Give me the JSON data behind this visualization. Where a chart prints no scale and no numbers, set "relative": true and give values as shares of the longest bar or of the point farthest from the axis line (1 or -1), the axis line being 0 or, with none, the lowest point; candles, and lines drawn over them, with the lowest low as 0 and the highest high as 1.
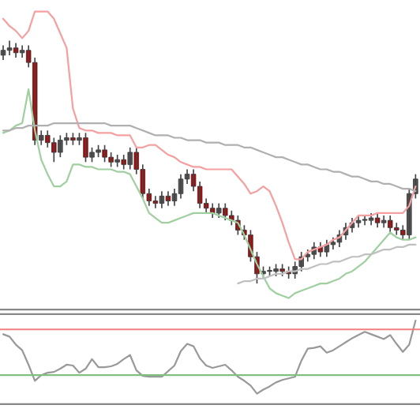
{
  "chart_data": [
    {
      "type": "candlestick",
      "relative": true,
      "tick_labels": false,
      "categories": [
        null,
        null,
        null,
        null,
        null,
        null,
        null,
        null,
        null,
        null,
        null,
        null,
        null,
        null,
        null,
        null,
        null,
        null,
        null,
        null,
        null,
        null,
        null,
        null,
        null,
        null,
        null,
        null,
        null,
        null,
        null,
        null,
        null,
        null,
        null,
        null,
        null,
        null,
        null,
        null,
        null,
        null,
        null,
        null,
        null,
        null,
        null,
        null,
        null,
        null,
        null,
        null,
        null,
        null,
        null,
        null,
        null,
        null,
        null,
        null,
        null,
        null,
        null,
        null,
        null,
        null
      ],
      "ohlc": [
        [
          0.94,
          0.98,
          0.92,
          0.96
        ],
        [
          0.96,
          1.0,
          0.94,
          0.97
        ],
        [
          0.97,
          0.99,
          0.93,
          0.95
        ],
        [
          0.95,
          0.98,
          0.93,
          0.96
        ],
        [
          0.96,
          0.98,
          0.89,
          0.91
        ],
        [
          0.91,
          0.93,
          0.57,
          0.59
        ],
        [
          0.59,
          0.63,
          0.57,
          0.61
        ],
        [
          0.61,
          0.63,
          0.56,
          0.58
        ],
        [
          0.58,
          0.6,
          0.5,
          0.54
        ],
        [
          0.54,
          0.61,
          0.52,
          0.59
        ],
        [
          0.59,
          0.62,
          0.57,
          0.6
        ],
        [
          0.6,
          0.62,
          0.57,
          0.59
        ],
        [
          0.59,
          0.62,
          0.57,
          0.6
        ],
        [
          0.6,
          0.62,
          0.5,
          0.52
        ],
        [
          0.52,
          0.56,
          0.5,
          0.54
        ],
        [
          0.54,
          0.57,
          0.52,
          0.55
        ],
        [
          0.55,
          0.57,
          0.5,
          0.52
        ],
        [
          0.52,
          0.54,
          0.48,
          0.5
        ],
        [
          0.5,
          0.53,
          0.48,
          0.51
        ],
        [
          0.51,
          0.53,
          0.47,
          0.49
        ],
        [
          0.49,
          0.56,
          0.47,
          0.54
        ],
        [
          0.54,
          0.56,
          0.45,
          0.47
        ],
        [
          0.47,
          0.49,
          0.35,
          0.37
        ],
        [
          0.37,
          0.39,
          0.32,
          0.34
        ],
        [
          0.34,
          0.36,
          0.31,
          0.33
        ],
        [
          0.33,
          0.38,
          0.31,
          0.36
        ],
        [
          0.36,
          0.38,
          0.32,
          0.34
        ],
        [
          0.34,
          0.39,
          0.32,
          0.37
        ],
        [
          0.37,
          0.45,
          0.35,
          0.43
        ],
        [
          0.43,
          0.47,
          0.41,
          0.45
        ],
        [
          0.45,
          0.47,
          0.38,
          0.4
        ],
        [
          0.4,
          0.42,
          0.31,
          0.33
        ],
        [
          0.33,
          0.35,
          0.29,
          0.31
        ],
        [
          0.31,
          0.33,
          0.27,
          0.29
        ],
        [
          0.29,
          0.33,
          0.27,
          0.31
        ],
        [
          0.31,
          0.33,
          0.26,
          0.28
        ],
        [
          0.28,
          0.3,
          0.24,
          0.26
        ],
        [
          0.26,
          0.28,
          0.2,
          0.22
        ],
        [
          0.22,
          0.24,
          0.18,
          0.2
        ],
        [
          0.2,
          0.22,
          0.09,
          0.11
        ],
        [
          0.11,
          0.13,
          0.0,
          0.04
        ],
        [
          0.04,
          0.07,
          0.02,
          0.05
        ],
        [
          0.05,
          0.07,
          0.03,
          0.05
        ],
        [
          0.05,
          0.08,
          0.03,
          0.06
        ],
        [
          0.06,
          0.08,
          0.03,
          0.05
        ],
        [
          0.05,
          0.07,
          0.02,
          0.04
        ],
        [
          0.04,
          0.09,
          0.02,
          0.07
        ],
        [
          0.07,
          0.13,
          0.05,
          0.11
        ],
        [
          0.11,
          0.14,
          0.09,
          0.12
        ],
        [
          0.12,
          0.17,
          0.1,
          0.15
        ],
        [
          0.15,
          0.17,
          0.11,
          0.13
        ],
        [
          0.13,
          0.18,
          0.11,
          0.16
        ],
        [
          0.16,
          0.19,
          0.14,
          0.17
        ],
        [
          0.17,
          0.22,
          0.15,
          0.2
        ],
        [
          0.2,
          0.25,
          0.18,
          0.23
        ],
        [
          0.23,
          0.27,
          0.21,
          0.25
        ],
        [
          0.25,
          0.28,
          0.23,
          0.26
        ],
        [
          0.26,
          0.28,
          0.24,
          0.26
        ],
        [
          0.26,
          0.29,
          0.24,
          0.27
        ],
        [
          0.27,
          0.29,
          0.23,
          0.25
        ],
        [
          0.25,
          0.28,
          0.23,
          0.26
        ],
        [
          0.26,
          0.28,
          0.21,
          0.23
        ],
        [
          0.23,
          0.25,
          0.2,
          0.22
        ],
        [
          0.22,
          0.24,
          0.18,
          0.2
        ],
        [
          0.2,
          0.39,
          0.18,
          0.37
        ],
        [
          0.37,
          0.45,
          0.35,
          0.43
        ]
      ],
      "colors": [
        "#555555",
        "#555555",
        "#c00000",
        "#555555",
        "#c00000",
        "#c00000",
        "#555555",
        "#c00000",
        "#c00000",
        "#555555",
        "#555555",
        "#c00000",
        "#555555",
        "#c00000",
        "#555555",
        "#555555",
        "#c00000",
        "#c00000",
        "#555555",
        "#c00000",
        "#555555",
        "#c00000",
        "#c00000",
        "#c00000",
        "#c00000",
        "#555555",
        "#c00000",
        "#555555",
        "#555555",
        "#555555",
        "#c00000",
        "#c00000",
        "#c00000",
        "#c00000",
        "#555555",
        "#c00000",
        "#c00000",
        "#c00000",
        "#c00000",
        "#c00000",
        "#c00000",
        "#555555",
        "#555555",
        "#555555",
        "#c00000",
        "#c00000",
        "#555555",
        "#555555",
        "#555555",
        "#555555",
        "#c00000",
        "#555555",
        "#555555",
        "#555555",
        "#555555",
        "#555555",
        "#555555",
        "#555555",
        "#555555",
        "#c00000",
        "#555555",
        "#c00000",
        "#c00000",
        "#c00000",
        "#555555",
        "#555555"
      ],
      "series": [
        {
          "type": "line",
          "color": "#f4a0a0",
          "values": [
            1.09,
            1.06,
            1.04,
            1.01,
            1.04,
            1.12,
            1.12,
            1.12,
            1.09,
            1.03,
            0.97,
            0.72,
            0.64,
            0.63,
            0.63,
            0.62,
            0.62,
            0.62,
            0.61,
            0.61,
            0.61,
            0.56,
            0.56,
            0.57,
            0.57,
            0.55,
            0.53,
            0.52,
            0.5,
            0.49,
            0.48,
            0.48,
            0.47,
            0.47,
            0.47,
            0.47,
            0.47,
            0.44,
            0.41,
            0.37,
            0.38,
            0.4,
            0.38,
            0.32,
            0.25,
            0.17,
            0.1,
            0.1,
            0.13,
            0.14,
            0.15,
            0.16,
            0.18,
            0.19,
            0.22,
            0.25,
            0.28,
            0.28,
            0.28,
            0.29,
            0.29,
            0.29,
            0.29,
            0.29,
            0.32,
            0.4
          ]
        },
        {
          "type": "line",
          "color": "#a0cfa0",
          "values": [
            0.62,
            0.63,
            0.65,
            0.66,
            0.8,
            0.63,
            0.51,
            0.45,
            0.4,
            0.4,
            0.42,
            0.49,
            0.49,
            0.48,
            0.48,
            0.47,
            0.47,
            0.47,
            0.46,
            0.46,
            0.45,
            0.4,
            0.35,
            0.29,
            0.27,
            0.25,
            0.25,
            0.26,
            0.27,
            0.28,
            0.29,
            0.29,
            0.29,
            0.29,
            0.28,
            0.27,
            0.26,
            0.25,
            0.2,
            0.14,
            0.08,
            0.03,
            -0.02,
            -0.04,
            -0.05,
            -0.06,
            -0.04,
            -0.03,
            -0.02,
            -0.01,
            0.0,
            0.0,
            0.01,
            0.02,
            0.04,
            0.05,
            0.07,
            0.09,
            0.12,
            0.15,
            0.18,
            0.21,
            0.19,
            0.18,
            0.18,
            0.19
          ]
        },
        {
          "type": "line",
          "color": "#b0b0b0",
          "values": [
            0.63,
            0.63,
            0.64,
            0.64,
            0.65,
            0.65,
            0.65,
            0.65,
            0.66,
            0.66,
            0.66,
            0.66,
            0.66,
            0.66,
            0.66,
            0.66,
            0.66,
            0.65,
            0.65,
            0.65,
            0.65,
            0.64,
            0.63,
            0.62,
            0.61,
            0.61,
            0.61,
            0.6,
            0.6,
            0.59,
            0.59,
            0.59,
            0.58,
            0.58,
            0.58,
            0.57,
            0.57,
            0.57,
            0.56,
            0.56,
            0.55,
            0.54,
            0.53,
            0.52,
            0.52,
            0.51,
            0.5,
            0.49,
            0.49,
            0.48,
            0.47,
            0.47,
            0.46,
            0.46,
            0.45,
            0.44,
            0.44,
            0.43,
            0.42,
            0.42,
            0.41,
            0.41,
            0.4,
            0.39,
            0.39,
            0.38
          ]
        },
        {
          "type": "line",
          "color": "#c0c0c0",
          "values": [
            null,
            null,
            null,
            null,
            null,
            null,
            null,
            null,
            null,
            null,
            null,
            null,
            null,
            null,
            null,
            null,
            null,
            null,
            null,
            null,
            null,
            null,
            null,
            null,
            null,
            null,
            null,
            null,
            null,
            null,
            null,
            null,
            null,
            null,
            null,
            null,
            null,
            0.0,
            0.01,
            0.01,
            0.02,
            0.02,
            0.03,
            0.04,
            0.04,
            0.05,
            0.05,
            0.06,
            0.06,
            0.07,
            0.08,
            0.08,
            0.09,
            0.09,
            0.1,
            0.11,
            0.11,
            0.12,
            0.12,
            0.13,
            0.14,
            0.14,
            0.15,
            0.15,
            0.16,
            0.16
          ]
        }
      ]
    },
    {
      "type": "line",
      "relative": true,
      "tick_labels": false,
      "categories": [
        null,
        null,
        null,
        null,
        null,
        null,
        null,
        null,
        null,
        null,
        null,
        null,
        null,
        null,
        null,
        null,
        null,
        null,
        null,
        null,
        null,
        null,
        null,
        null,
        null,
        null,
        null,
        null,
        null,
        null,
        null,
        null,
        null,
        null,
        null,
        null,
        null,
        null,
        null,
        null,
        null,
        null,
        null,
        null,
        null,
        null,
        null,
        null,
        null,
        null,
        null,
        null,
        null,
        null,
        null,
        null,
        null,
        null,
        null,
        null,
        null,
        null,
        null,
        null,
        null,
        null
      ],
      "series": [
        {
          "color": "#999999",
          "values": [
            0.83,
            0.8,
            0.7,
            0.63,
            0.45,
            0.25,
            0.32,
            0.35,
            0.36,
            0.4,
            0.45,
            0.44,
            0.35,
            0.4,
            0.52,
            0.42,
            0.42,
            0.43,
            0.46,
            0.52,
            0.57,
            0.38,
            0.31,
            0.3,
            0.3,
            0.3,
            0.37,
            0.44,
            0.62,
            0.71,
            0.68,
            0.53,
            0.44,
            0.41,
            0.43,
            0.45,
            0.38,
            0.3,
            0.25,
            0.19,
            0.09,
            0.14,
            0.18,
            0.23,
            0.26,
            0.28,
            0.3,
            0.5,
            0.65,
            0.66,
            0.68,
            0.6,
            0.63,
            0.68,
            0.73,
            0.78,
            0.82,
            0.86,
            0.83,
            0.8,
            0.77,
            0.82,
            0.71,
            0.61,
            0.7,
            1.0
          ]
        }
      ],
      "ref_lines": [
        {
          "axis": "y",
          "value": 0.89,
          "color": "#f08080"
        },
        {
          "axis": "y",
          "value": 0.32,
          "color": "#80c080"
        }
      ]
    }
  ]
}
